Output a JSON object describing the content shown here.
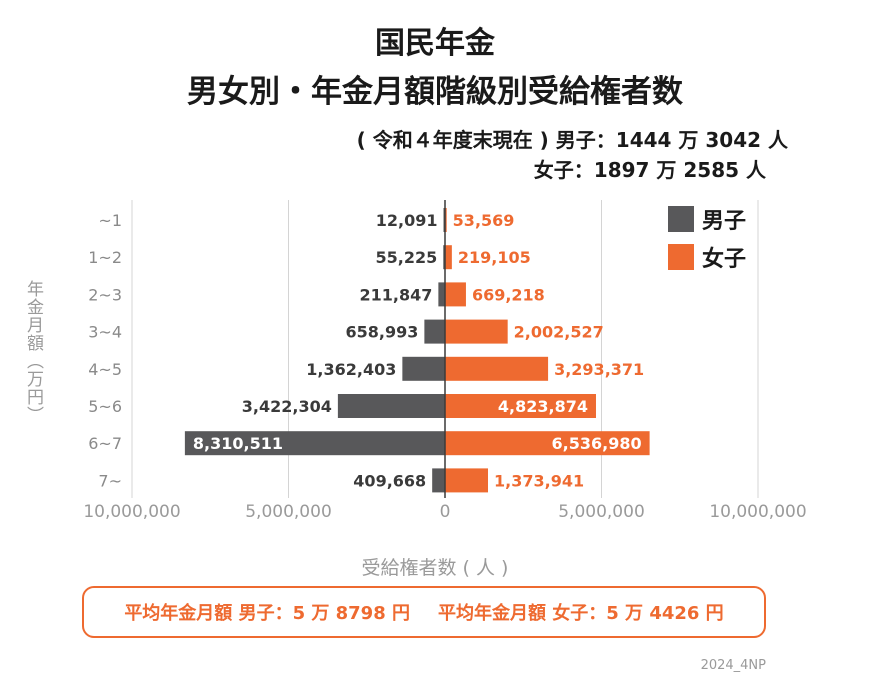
{
  "title_line1": "国民年金",
  "title_line2": "男女別・年金月額階級別受給権者数",
  "subtitle_line1": "( 令和４年度末現在 ) 男子：1444 万 3042 人",
  "subtitle_line2": "女子：1897 万 2585 人",
  "average_male": "平均年金月額 男子：5 万 8798 円",
  "average_female": "平均年金月額 女子：5 万 4426 円",
  "footer": "2024_4NP",
  "colors": {
    "male": "#58585a",
    "female": "#ee6a30",
    "grid": "#d4d4d4",
    "axis_text": "#9a9a9a"
  },
  "chart_data": {
    "type": "bar",
    "orientation": "horizontal-diverging",
    "categories": [
      "~1",
      "1~2",
      "2~3",
      "3~4",
      "4~5",
      "5~6",
      "6~7",
      "7~"
    ],
    "series": [
      {
        "name": "男子",
        "side": "left",
        "values": [
          12091,
          55225,
          211847,
          658993,
          1362403,
          3422304,
          8310511,
          409668
        ],
        "labels": [
          "12,091",
          "55,225",
          "211,847",
          "658,993",
          "1,362,403",
          "3,422,304",
          "8,310,511",
          "409,668"
        ]
      },
      {
        "name": "女子",
        "side": "right",
        "values": [
          53569,
          219105,
          669218,
          2002527,
          3293371,
          4823874,
          6536980,
          1373941
        ],
        "labels": [
          "53,569",
          "219,105",
          "669,218",
          "2,002,527",
          "3,293,371",
          "4,823,874",
          "6,536,980",
          "1,373,941"
        ]
      }
    ],
    "xticks": [
      {
        "value": -10000000,
        "label": "10,000,000"
      },
      {
        "value": -5000000,
        "label": "5,000,000"
      },
      {
        "value": 0,
        "label": "0"
      },
      {
        "value": 5000000,
        "label": "5,000,000"
      },
      {
        "value": 10000000,
        "label": "10,000,000"
      }
    ],
    "xlim": [
      -10000000,
      10000000
    ],
    "xlabel": "受給権者数 ( 人 )",
    "ylabel": "年金月額（万円）",
    "legend": "top-right",
    "grid": true
  }
}
